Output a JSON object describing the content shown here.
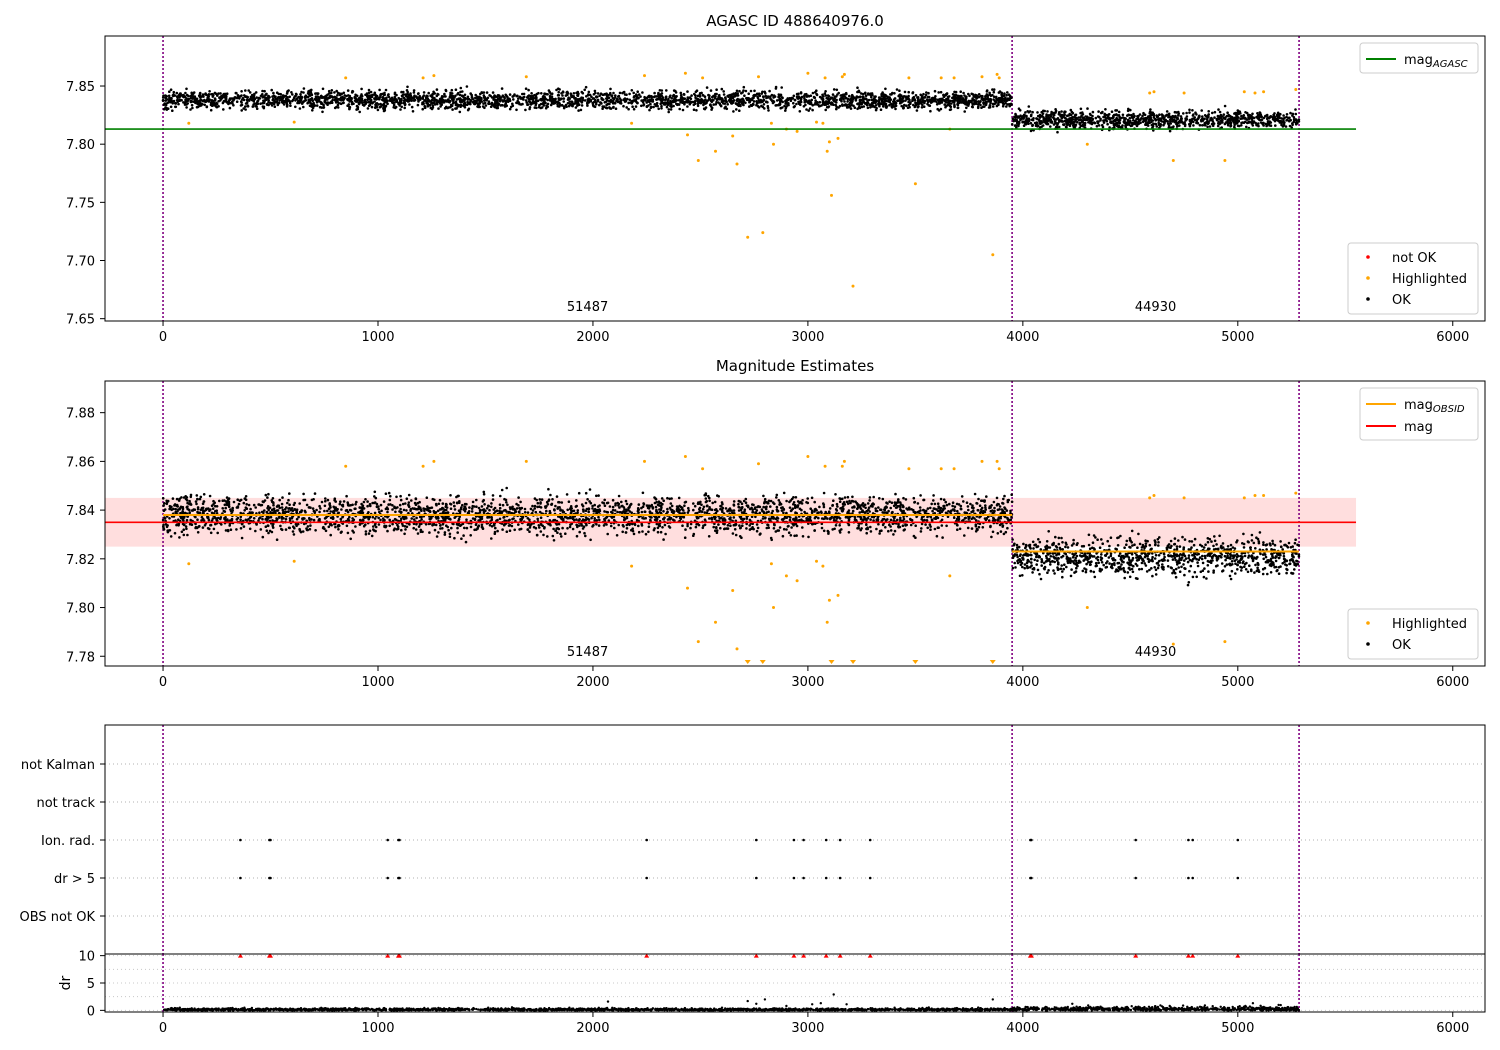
{
  "chart_data": [
    {
      "type": "scatter",
      "title": "AGASC ID 488640976.0",
      "xlabel": "",
      "ylabel": "",
      "xlim": [
        -270,
        6150
      ],
      "ylim": [
        7.648,
        7.893
      ],
      "xticks": [
        0,
        1000,
        2000,
        3000,
        4000,
        5000,
        6000
      ],
      "yticks": [
        7.65,
        7.7,
        7.75,
        7.8,
        7.85
      ],
      "vlines": [
        0,
        3950,
        5285
      ],
      "hline": {
        "name": "mag_AGASC",
        "y": 7.813,
        "x": [
          -270,
          5550
        ],
        "color": "#008000"
      },
      "segments": [
        {
          "label": "51487",
          "x": [
            0,
            3950
          ],
          "center": 7.838,
          "spread": 0.0055
        },
        {
          "label": "44930",
          "x": [
            3950,
            5285
          ],
          "center": 7.821,
          "spread": 0.0055
        }
      ],
      "highlighted_points": [
        [
          120,
          7.818
        ],
        [
          610,
          7.819
        ],
        [
          850,
          7.857
        ],
        [
          1210,
          7.857
        ],
        [
          1260,
          7.859
        ],
        [
          1690,
          7.858
        ],
        [
          2180,
          7.818
        ],
        [
          2240,
          7.859
        ],
        [
          2430,
          7.861
        ],
        [
          2440,
          7.808
        ],
        [
          2490,
          7.786
        ],
        [
          2510,
          7.857
        ],
        [
          2570,
          7.794
        ],
        [
          2650,
          7.807
        ],
        [
          2670,
          7.783
        ],
        [
          2720,
          7.72
        ],
        [
          2770,
          7.858
        ],
        [
          2790,
          7.724
        ],
        [
          2830,
          7.818
        ],
        [
          2840,
          7.8
        ],
        [
          2900,
          7.813
        ],
        [
          2950,
          7.811
        ],
        [
          3000,
          7.861
        ],
        [
          3040,
          7.819
        ],
        [
          3070,
          7.818
        ],
        [
          3080,
          7.857
        ],
        [
          3090,
          7.794
        ],
        [
          3100,
          7.802
        ],
        [
          3110,
          7.756
        ],
        [
          3140,
          7.805
        ],
        [
          3160,
          7.858
        ],
        [
          3170,
          7.86
        ],
        [
          3210,
          7.678
        ],
        [
          3470,
          7.857
        ],
        [
          3500,
          7.766
        ],
        [
          3620,
          7.857
        ],
        [
          3660,
          7.813
        ],
        [
          3680,
          7.857
        ],
        [
          3810,
          7.858
        ],
        [
          3860,
          7.705
        ],
        [
          3880,
          7.86
        ],
        [
          3890,
          7.857
        ],
        [
          4300,
          7.8
        ],
        [
          4590,
          7.844
        ],
        [
          4610,
          7.845
        ],
        [
          4700,
          7.786
        ],
        [
          4750,
          7.844
        ],
        [
          4940,
          7.786
        ],
        [
          5030,
          7.845
        ],
        [
          5080,
          7.844
        ],
        [
          5120,
          7.845
        ],
        [
          5270,
          7.847
        ]
      ],
      "not_ok_points": [],
      "legend_lines": [
        {
          "label": "mag",
          "sub": "AGASC",
          "color": "#008000"
        }
      ],
      "legend_points": [
        {
          "label": "not OK",
          "color": "#ff0000"
        },
        {
          "label": "Highlighted",
          "color": "#ffa500"
        },
        {
          "label": "OK",
          "color": "#000000"
        }
      ]
    },
    {
      "type": "scatter",
      "title": "Magnitude Estimates",
      "xlabel": "",
      "ylabel": "",
      "xlim": [
        -270,
        6150
      ],
      "ylim": [
        7.776,
        7.893
      ],
      "xticks": [
        0,
        1000,
        2000,
        3000,
        4000,
        5000,
        6000
      ],
      "yticks": [
        7.78,
        7.8,
        7.82,
        7.84,
        7.86,
        7.88
      ],
      "vlines": [
        0,
        3950,
        5285
      ],
      "mag": {
        "y": 7.835,
        "band": [
          7.825,
          7.845
        ],
        "x": [
          -270,
          5550
        ],
        "color": "#ff0000"
      },
      "mag_obsid": [
        {
          "x": [
            0,
            3950
          ],
          "y": 7.838
        },
        {
          "x": [
            3950,
            5285
          ],
          "y": 7.823
        }
      ],
      "segments": [
        {
          "label": "51487",
          "x": [
            0,
            3950
          ],
          "center": 7.838,
          "spread": 0.0055
        },
        {
          "label": "44930",
          "x": [
            3950,
            5285
          ],
          "center": 7.821,
          "spread": 0.0055
        }
      ],
      "highlighted_points": [
        [
          120,
          7.818
        ],
        [
          610,
          7.819
        ],
        [
          850,
          7.858
        ],
        [
          1210,
          7.858
        ],
        [
          1260,
          7.86
        ],
        [
          1690,
          7.86
        ],
        [
          2180,
          7.817
        ],
        [
          2240,
          7.86
        ],
        [
          2430,
          7.862
        ],
        [
          2440,
          7.808
        ],
        [
          2490,
          7.786
        ],
        [
          2510,
          7.857
        ],
        [
          2570,
          7.794
        ],
        [
          2650,
          7.807
        ],
        [
          2670,
          7.783
        ],
        [
          2770,
          7.859
        ],
        [
          2830,
          7.818
        ],
        [
          2840,
          7.8
        ],
        [
          2900,
          7.813
        ],
        [
          2950,
          7.811
        ],
        [
          3000,
          7.862
        ],
        [
          3040,
          7.819
        ],
        [
          3070,
          7.817
        ],
        [
          3080,
          7.858
        ],
        [
          3090,
          7.794
        ],
        [
          3100,
          7.803
        ],
        [
          3140,
          7.805
        ],
        [
          3160,
          7.858
        ],
        [
          3170,
          7.86
        ],
        [
          3470,
          7.857
        ],
        [
          3620,
          7.857
        ],
        [
          3660,
          7.813
        ],
        [
          3680,
          7.857
        ],
        [
          3810,
          7.86
        ],
        [
          3880,
          7.86
        ],
        [
          3890,
          7.857
        ],
        [
          4300,
          7.8
        ],
        [
          4590,
          7.845
        ],
        [
          4610,
          7.846
        ],
        [
          4700,
          7.785
        ],
        [
          4750,
          7.845
        ],
        [
          4940,
          7.786
        ],
        [
          5030,
          7.845
        ],
        [
          5080,
          7.846
        ],
        [
          5120,
          7.846
        ],
        [
          5270,
          7.847
        ]
      ],
      "clipped_below": [
        2720,
        2790,
        3110,
        3210,
        3500,
        3860
      ],
      "legend_lines": [
        {
          "label": "mag",
          "sub": "OBSID",
          "color": "#ffa500"
        },
        {
          "label": "mag",
          "sub": "",
          "color": "#ff0000"
        }
      ],
      "legend_points": [
        {
          "label": "Highlighted",
          "color": "#ffa500"
        },
        {
          "label": "OK",
          "color": "#000000"
        }
      ]
    },
    {
      "type": "scatter",
      "title": "",
      "xlim": [
        -270,
        6150
      ],
      "categories": [
        "OBS not OK",
        "dr > 5",
        "Ion. rad.",
        "not track",
        "not Kalman"
      ],
      "vlines": [
        0,
        3950,
        5285
      ],
      "flag_x": [
        360,
        495,
        500,
        1045,
        1095,
        1100,
        2250,
        2760,
        2935,
        2980,
        3085,
        3150,
        3290,
        4035,
        4040,
        4525,
        4770,
        4790,
        5000
      ],
      "flags": {
        "dr > 5": true,
        "Ion. rad.": true,
        "OBS not OK": false,
        "not track": false,
        "not Kalman": false
      }
    },
    {
      "type": "scatter",
      "title": "",
      "xlabel": "",
      "ylabel": "dr",
      "xlim": [
        -270,
        6150
      ],
      "ylim": [
        -0.3,
        10.3
      ],
      "xticks": [
        0,
        1000,
        2000,
        3000,
        4000,
        5000,
        6000
      ],
      "yticks": [
        0,
        5,
        10
      ],
      "vlines": [
        0,
        3950,
        5285
      ],
      "clipped_above_x": [
        360,
        495,
        500,
        1045,
        1095,
        1100,
        2250,
        2760,
        2935,
        2980,
        3085,
        3150,
        3290,
        4035,
        4040,
        4525,
        4770,
        4790,
        5000
      ],
      "outliers": [
        [
          2070,
          1.6
        ],
        [
          2720,
          1.7
        ],
        [
          2760,
          1.2
        ],
        [
          2800,
          2.0
        ],
        [
          2900,
          0.8
        ],
        [
          3020,
          1.1
        ],
        [
          3060,
          1.3
        ],
        [
          3120,
          2.9
        ],
        [
          3180,
          1.1
        ],
        [
          3860,
          2.0
        ],
        [
          4230,
          1.2
        ],
        [
          4640,
          0.9
        ],
        [
          5070,
          1.3
        ],
        [
          5190,
          1.0
        ]
      ]
    }
  ]
}
